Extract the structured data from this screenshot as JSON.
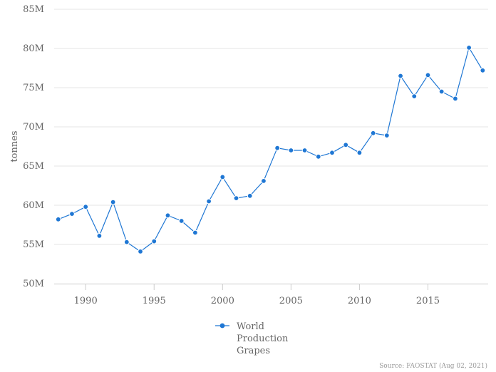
{
  "chart_data": {
    "type": "line",
    "ylabel": "tonnes",
    "ylim": [
      50000000,
      85000000
    ],
    "xlim": [
      1987.7,
      2019.4
    ],
    "y_ticks": [
      {
        "value": 50000000,
        "label": "50M"
      },
      {
        "value": 55000000,
        "label": "55M"
      },
      {
        "value": 60000000,
        "label": "60M"
      },
      {
        "value": 65000000,
        "label": "65M"
      },
      {
        "value": 70000000,
        "label": "70M"
      },
      {
        "value": 75000000,
        "label": "75M"
      },
      {
        "value": 80000000,
        "label": "80M"
      },
      {
        "value": 85000000,
        "label": "85M"
      }
    ],
    "x_ticks": [
      {
        "value": 1990,
        "label": "1990"
      },
      {
        "value": 1995,
        "label": "1995"
      },
      {
        "value": 2000,
        "label": "2000"
      },
      {
        "value": 2005,
        "label": "2005"
      },
      {
        "value": 2010,
        "label": "2010"
      },
      {
        "value": 2015,
        "label": "2015"
      }
    ],
    "grid": "horizontal",
    "legend_position": "bottom-center",
    "series": [
      {
        "name_lines": [
          "World",
          "Production",
          "Grapes"
        ],
        "color": "#1f77d4",
        "x": [
          1988,
          1989,
          1990,
          1991,
          1992,
          1993,
          1994,
          1995,
          1996,
          1997,
          1998,
          1999,
          2000,
          2001,
          2002,
          2003,
          2004,
          2005,
          2006,
          2007,
          2008,
          2009,
          2010,
          2011,
          2012,
          2013,
          2014,
          2015,
          2016,
          2017,
          2018,
          2019
        ],
        "values": [
          58200000,
          58900000,
          59800000,
          56100000,
          60400000,
          55300000,
          54100000,
          55400000,
          58700000,
          58000000,
          56500000,
          60500000,
          63600000,
          60900000,
          61200000,
          63100000,
          67300000,
          67000000,
          67000000,
          66200000,
          66700000,
          67700000,
          66700000,
          69200000,
          68900000,
          76500000,
          73900000,
          76600000,
          74500000,
          73600000,
          80100000,
          77200000
        ]
      }
    ]
  },
  "source": "Source: FAOSTAT (Aug 02, 2021)"
}
